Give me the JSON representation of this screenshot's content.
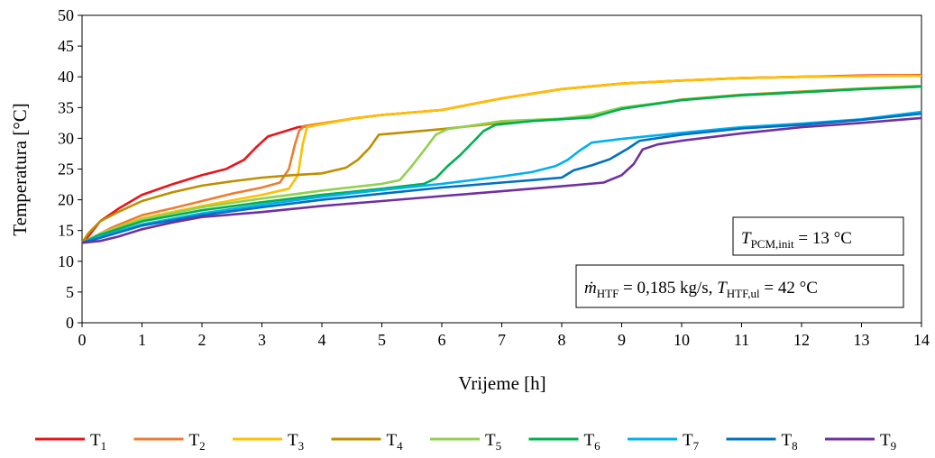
{
  "chart_data": {
    "type": "line",
    "xlabel": "Vrijeme [h]",
    "ylabel": "Temperatura [°C]",
    "xlim": [
      0,
      14
    ],
    "ylim": [
      0,
      50
    ],
    "xticks": [
      0,
      1,
      2,
      3,
      4,
      5,
      6,
      7,
      8,
      9,
      10,
      11,
      12,
      13,
      14
    ],
    "yticks": [
      0,
      5,
      10,
      15,
      20,
      25,
      30,
      35,
      40,
      45,
      50
    ],
    "grid": false,
    "legend_position": "bottom",
    "annotations": [
      {
        "main": "T",
        "sub": "PCM,init",
        "rest": " = 13 °C"
      },
      {
        "segments": [
          {
            "t": "ṁ",
            "italic": true
          },
          {
            "t": "HTF",
            "sub": true
          },
          {
            "t": " = 0,185 kg/s, "
          },
          {
            "t": "T",
            "italic": true
          },
          {
            "t": "HTF,ul",
            "sub": true
          },
          {
            "t": " = 42 °C"
          }
        ]
      }
    ],
    "series": [
      {
        "name": "T",
        "sub": "1",
        "color": "#e8141b",
        "points": [
          [
            0,
            13
          ],
          [
            0.1,
            14
          ],
          [
            0.3,
            16.5
          ],
          [
            0.6,
            18.5
          ],
          [
            1,
            20.8
          ],
          [
            1.5,
            22.5
          ],
          [
            2,
            24
          ],
          [
            2.4,
            25
          ],
          [
            2.7,
            26.5
          ],
          [
            2.9,
            28.5
          ],
          [
            3.1,
            30.3
          ],
          [
            3.4,
            31.2
          ],
          [
            3.6,
            31.8
          ],
          [
            3.8,
            32
          ],
          [
            4.5,
            33.2
          ],
          [
            5,
            33.8
          ],
          [
            6,
            34.6
          ],
          [
            7,
            36.5
          ],
          [
            8,
            38
          ],
          [
            9,
            38.9
          ],
          [
            10,
            39.4
          ],
          [
            11,
            39.8
          ],
          [
            12,
            40
          ],
          [
            13,
            40.2
          ],
          [
            14,
            40.3
          ]
        ]
      },
      {
        "name": "T",
        "sub": "2",
        "color": "#ed7d31",
        "points": [
          [
            0,
            13
          ],
          [
            0.2,
            14
          ],
          [
            0.5,
            15.5
          ],
          [
            1,
            17.5
          ],
          [
            1.5,
            18.6
          ],
          [
            2,
            19.8
          ],
          [
            2.5,
            21
          ],
          [
            3,
            22
          ],
          [
            3.3,
            22.8
          ],
          [
            3.45,
            25
          ],
          [
            3.55,
            29
          ],
          [
            3.62,
            31.2
          ],
          [
            3.7,
            32
          ],
          [
            4.5,
            33.2
          ],
          [
            5,
            33.8
          ],
          [
            6,
            34.6
          ],
          [
            7,
            36.5
          ],
          [
            8,
            38
          ],
          [
            9,
            38.9
          ],
          [
            10,
            39.4
          ],
          [
            11,
            39.8
          ],
          [
            12,
            40
          ],
          [
            13,
            40.1
          ],
          [
            14,
            40.2
          ]
        ]
      },
      {
        "name": "T",
        "sub": "3",
        "color": "#ffc000",
        "points": [
          [
            0,
            13
          ],
          [
            0.3,
            14.5
          ],
          [
            1,
            17
          ],
          [
            2,
            19
          ],
          [
            3,
            20.8
          ],
          [
            3.45,
            21.8
          ],
          [
            3.6,
            24
          ],
          [
            3.68,
            29
          ],
          [
            3.75,
            31.8
          ],
          [
            4,
            32.3
          ],
          [
            4.5,
            33.2
          ],
          [
            5,
            33.8
          ],
          [
            6,
            34.6
          ],
          [
            7,
            36.5
          ],
          [
            8,
            38
          ],
          [
            9,
            38.9
          ],
          [
            10,
            39.4
          ],
          [
            11,
            39.8
          ],
          [
            12,
            40
          ],
          [
            13,
            40.1
          ],
          [
            14,
            40.2
          ]
        ]
      },
      {
        "name": "T",
        "sub": "4",
        "color": "#bf8f00",
        "points": [
          [
            0,
            13
          ],
          [
            0.1,
            14.5
          ],
          [
            0.3,
            16.5
          ],
          [
            0.6,
            18
          ],
          [
            1,
            19.8
          ],
          [
            1.5,
            21.2
          ],
          [
            2,
            22.3
          ],
          [
            2.5,
            23
          ],
          [
            3,
            23.6
          ],
          [
            3.5,
            24
          ],
          [
            4,
            24.3
          ],
          [
            4.4,
            25.2
          ],
          [
            4.6,
            26.5
          ],
          [
            4.8,
            28.5
          ],
          [
            4.95,
            30.6
          ],
          [
            5.2,
            30.8
          ],
          [
            6,
            31.5
          ],
          [
            7,
            32.5
          ],
          [
            8,
            33.2
          ],
          [
            8.5,
            33.6
          ],
          [
            9,
            34.8
          ],
          [
            10,
            36.3
          ],
          [
            11,
            37.1
          ],
          [
            12,
            37.6
          ],
          [
            13,
            38.1
          ],
          [
            14,
            38.5
          ]
        ]
      },
      {
        "name": "T",
        "sub": "5",
        "color": "#92d050",
        "points": [
          [
            0,
            13
          ],
          [
            0.3,
            14.5
          ],
          [
            1,
            16.8
          ],
          [
            2,
            18.8
          ],
          [
            3,
            20.2
          ],
          [
            4,
            21.5
          ],
          [
            5,
            22.6
          ],
          [
            5.3,
            23.2
          ],
          [
            5.5,
            25.5
          ],
          [
            5.7,
            28
          ],
          [
            5.9,
            30.6
          ],
          [
            6.1,
            31.5
          ],
          [
            7,
            32.8
          ],
          [
            8,
            33.2
          ],
          [
            8.5,
            33.8
          ],
          [
            9,
            35
          ],
          [
            10,
            36.2
          ],
          [
            11,
            37
          ],
          [
            12,
            37.5
          ],
          [
            13,
            38
          ],
          [
            14,
            38.4
          ]
        ]
      },
      {
        "name": "T",
        "sub": "6",
        "color": "#00b050",
        "points": [
          [
            0,
            13
          ],
          [
            0.3,
            14.3
          ],
          [
            1,
            16.5
          ],
          [
            2,
            18.3
          ],
          [
            3,
            19.6
          ],
          [
            4,
            20.8
          ],
          [
            5,
            21.8
          ],
          [
            5.7,
            22.6
          ],
          [
            5.9,
            23.5
          ],
          [
            6.1,
            25.5
          ],
          [
            6.3,
            27.2
          ],
          [
            6.5,
            29.2
          ],
          [
            6.7,
            31.2
          ],
          [
            6.9,
            32.2
          ],
          [
            7.5,
            32.8
          ],
          [
            8.5,
            33.4
          ],
          [
            9,
            34.8
          ],
          [
            10,
            36.2
          ],
          [
            11,
            37
          ],
          [
            12,
            37.5
          ],
          [
            13,
            38
          ],
          [
            14,
            38.4
          ]
        ]
      },
      {
        "name": "T",
        "sub": "7",
        "color": "#00b0f0",
        "points": [
          [
            0,
            13
          ],
          [
            0.3,
            14
          ],
          [
            1,
            16
          ],
          [
            2,
            17.8
          ],
          [
            3,
            19.2
          ],
          [
            4,
            20.5
          ],
          [
            5,
            21.6
          ],
          [
            6,
            22.6
          ],
          [
            7,
            23.8
          ],
          [
            7.5,
            24.5
          ],
          [
            7.9,
            25.5
          ],
          [
            8.1,
            26.5
          ],
          [
            8.3,
            28
          ],
          [
            8.5,
            29.3
          ],
          [
            9,
            29.9
          ],
          [
            10,
            30.9
          ],
          [
            11,
            31.8
          ],
          [
            12,
            32.4
          ],
          [
            13,
            33.1
          ],
          [
            14,
            34.3
          ]
        ]
      },
      {
        "name": "T",
        "sub": "8",
        "color": "#0070c0",
        "points": [
          [
            0,
            13
          ],
          [
            0.3,
            13.8
          ],
          [
            1,
            15.8
          ],
          [
            2,
            17.5
          ],
          [
            3,
            18.8
          ],
          [
            4,
            20
          ],
          [
            5,
            21
          ],
          [
            6,
            22
          ],
          [
            7,
            22.8
          ],
          [
            7.5,
            23.2
          ],
          [
            8,
            23.6
          ],
          [
            8.2,
            24.8
          ],
          [
            8.5,
            25.6
          ],
          [
            8.8,
            26.6
          ],
          [
            9.1,
            28.3
          ],
          [
            9.3,
            29.6
          ],
          [
            10,
            30.6
          ],
          [
            11,
            31.6
          ],
          [
            12,
            32.2
          ],
          [
            13,
            33
          ],
          [
            14,
            34
          ]
        ]
      },
      {
        "name": "T",
        "sub": "9",
        "color": "#7030a0",
        "points": [
          [
            0,
            13
          ],
          [
            0.3,
            13.3
          ],
          [
            0.6,
            14
          ],
          [
            1,
            15.2
          ],
          [
            1.5,
            16.3
          ],
          [
            2,
            17.2
          ],
          [
            3,
            18
          ],
          [
            4,
            19
          ],
          [
            5,
            19.8
          ],
          [
            6,
            20.6
          ],
          [
            7,
            21.4
          ],
          [
            8,
            22.2
          ],
          [
            8.7,
            22.8
          ],
          [
            9,
            24
          ],
          [
            9.2,
            25.8
          ],
          [
            9.35,
            28.2
          ],
          [
            9.6,
            29
          ],
          [
            10,
            29.6
          ],
          [
            11,
            30.8
          ],
          [
            12,
            31.8
          ],
          [
            13,
            32.5
          ],
          [
            14,
            33.3
          ]
        ]
      }
    ]
  }
}
